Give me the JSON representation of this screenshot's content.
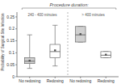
{
  "chart_data": {
    "type": "box",
    "title": "Procedure duration:",
    "ylabel": "Probability of Surgical Site Infection",
    "categories": [
      "No redosing",
      "Redosing",
      "No redosing",
      "Redosing"
    ],
    "annotations": [
      "240 - 400 minutes",
      "> 400 minutes"
    ],
    "values": [
      {
        "med": 0.065,
        "q1": 0.055,
        "q3": 0.08,
        "whislo": 0.035,
        "whishi": 0.175,
        "mean": 0.067
      },
      {
        "med": 0.105,
        "q1": 0.08,
        "q3": 0.135,
        "whislo": 0.045,
        "whishi": 0.215,
        "mean": 0.11
      },
      {
        "med": 0.175,
        "q1": 0.145,
        "q3": 0.21,
        "whislo": 0.145,
        "whishi": 0.21,
        "mean": 0.178
      },
      {
        "med": 0.09,
        "q1": 0.08,
        "q3": 0.105,
        "whislo": 0.08,
        "whishi": 0.105,
        "mean": 0.092
      }
    ],
    "colors": [
      "#d0d0d0",
      "#ffffff",
      "#d0d0d0",
      "#ffffff"
    ],
    "marker": "square",
    "ylim": [
      0,
      0.27
    ],
    "yticks": [
      0,
      0.05,
      0.1,
      0.15,
      0.2,
      0.25
    ],
    "grid": false
  }
}
